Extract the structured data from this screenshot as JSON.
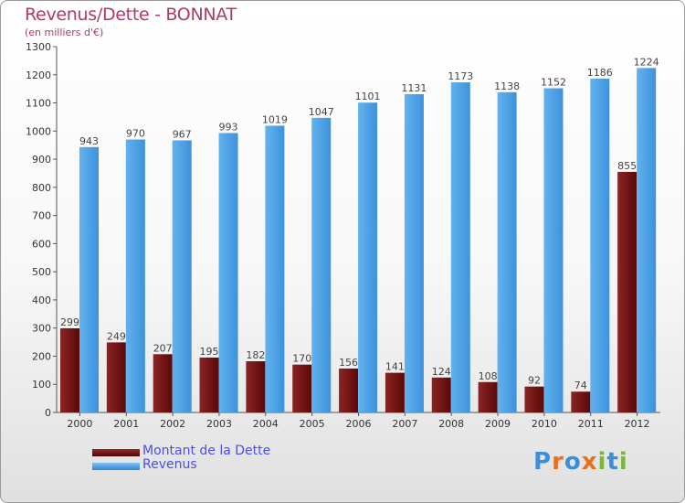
{
  "header": {
    "title": "Revenus/Dette - BONNAT",
    "subtitle": "(en milliers d'€)"
  },
  "chart_data": {
    "type": "bar",
    "categories": [
      "2000",
      "2001",
      "2002",
      "2003",
      "2004",
      "2005",
      "2006",
      "2007",
      "2008",
      "2009",
      "2010",
      "2011",
      "2012"
    ],
    "series": [
      {
        "name": "Montant de la Dette",
        "values": [
          299,
          249,
          207,
          195,
          182,
          170,
          156,
          141,
          124,
          108,
          92,
          74,
          855
        ],
        "color": "#6b0f0f"
      },
      {
        "name": "Revenus",
        "values": [
          943,
          970,
          967,
          993,
          1019,
          1047,
          1101,
          1131,
          1173,
          1138,
          1152,
          1186,
          1224
        ],
        "color": "#4aa0e6"
      }
    ],
    "yticks": [
      0,
      100,
      200,
      300,
      400,
      500,
      600,
      700,
      800,
      900,
      1000,
      1100,
      1200,
      1300
    ],
    "ylim": [
      0,
      1300
    ],
    "grid": false,
    "legend_position": "bottom-left"
  },
  "legend": {
    "items": [
      {
        "label": "Montant de la Dette",
        "color": "#6b0f0f"
      },
      {
        "label": "Revenus",
        "color": "#4aa0e6"
      }
    ]
  },
  "logo": {
    "text": "Proxiti"
  }
}
